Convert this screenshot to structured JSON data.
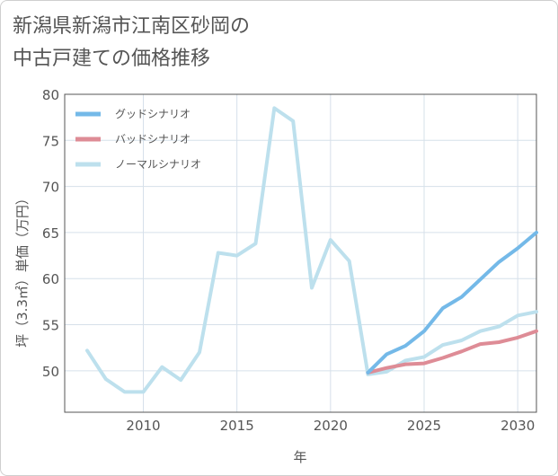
{
  "title": {
    "line1": "新潟県新潟市江南区砂岡の",
    "line2": "中古戸建ての価格推移"
  },
  "chart_data": {
    "type": "line",
    "title": "新潟県新潟市江南区砂岡の中古戸建ての価格推移",
    "xlabel": "年",
    "ylabel": "坪（3.3㎡）単価（万円）",
    "xlim": [
      2005.8,
      2031
    ],
    "ylim": [
      45.5,
      80
    ],
    "x_ticks": [
      2010,
      2015,
      2020,
      2025,
      2030
    ],
    "y_ticks": [
      50,
      55,
      60,
      65,
      70,
      75,
      80
    ],
    "grid": true,
    "legend_position": "top-left",
    "series": [
      {
        "name": "グッドシナリオ",
        "color": "#74b9e8",
        "x": [
          2022,
          2023,
          2024,
          2025,
          2026,
          2027,
          2028,
          2029,
          2030,
          2031
        ],
        "values": [
          49.8,
          51.8,
          52.7,
          54.3,
          56.8,
          58.0,
          59.9,
          61.8,
          63.3,
          65.0
        ]
      },
      {
        "name": "バッドシナリオ",
        "color": "#de8c96",
        "x": [
          2022,
          2023,
          2024,
          2025,
          2026,
          2027,
          2028,
          2029,
          2030,
          2031
        ],
        "values": [
          49.8,
          50.3,
          50.7,
          50.8,
          51.4,
          52.1,
          52.9,
          53.1,
          53.6,
          54.3
        ]
      },
      {
        "name": "ノーマルシナリオ",
        "color": "#bde0ed",
        "x": [
          2007,
          2008,
          2009,
          2010,
          2011,
          2012,
          2013,
          2014,
          2015,
          2016,
          2017,
          2018,
          2019,
          2020,
          2021,
          2022,
          2023,
          2024,
          2025,
          2026,
          2027,
          2028,
          2029,
          2030,
          2031
        ],
        "values": [
          52.2,
          49.1,
          47.7,
          47.7,
          50.4,
          49.0,
          52.0,
          62.8,
          62.5,
          63.8,
          78.5,
          77.1,
          59.0,
          64.2,
          61.9,
          49.6,
          49.9,
          51.1,
          51.5,
          52.8,
          53.3,
          54.3,
          54.8,
          56.0,
          56.4
        ]
      }
    ]
  }
}
